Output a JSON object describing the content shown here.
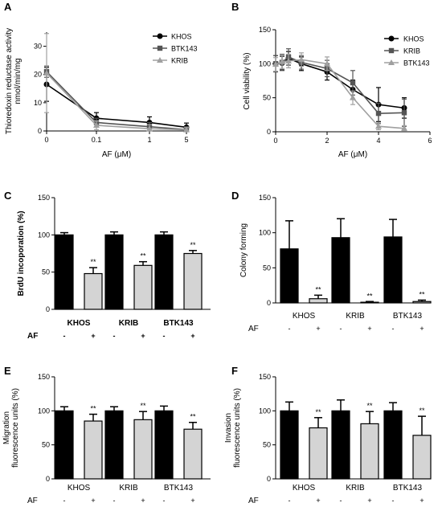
{
  "chart_data": [
    {
      "panel": "A",
      "type": "line",
      "ylabel_lines": [
        "Thioredoxin reductase activity",
        "nmol/min/mg"
      ],
      "xlabel": "AF (μM)",
      "x_tick_labels": [
        "0",
        "0.1",
        "1",
        "5"
      ],
      "ylim": [
        0,
        35
      ],
      "yticks": [
        0,
        10,
        20,
        30
      ],
      "series": [
        {
          "name": "KHOS",
          "color": "#000000",
          "marker": "circle",
          "values": [
            16.5,
            4.5,
            3.0,
            1.3
          ],
          "errors": [
            6.0,
            2.0,
            2.0,
            1.5
          ]
        },
        {
          "name": "BTK143",
          "color": "#555555",
          "marker": "square",
          "values": [
            21.0,
            3.0,
            1.5,
            0.5
          ],
          "errors": [
            2.0,
            1.5,
            1.5,
            1.0
          ]
        },
        {
          "name": "KRIB",
          "color": "#a0a0a0",
          "marker": "triangle",
          "values": [
            20.5,
            2.0,
            0.8,
            0.4
          ],
          "errors": [
            14.0,
            1.5,
            1.5,
            0.8
          ]
        }
      ]
    },
    {
      "panel": "B",
      "type": "line",
      "ylabel": "Cell viability (%)",
      "xlabel": "AF (μM)",
      "xlim": [
        0,
        6
      ],
      "xticks": [
        0,
        2,
        4,
        6
      ],
      "ylim": [
        0,
        150
      ],
      "yticks": [
        0,
        50,
        100,
        150
      ],
      "x": [
        0,
        0.25,
        0.5,
        1,
        2,
        3,
        4,
        5
      ],
      "series": [
        {
          "name": "KHOS",
          "color": "#000000",
          "marker": "circle",
          "values": [
            100,
            101,
            108,
            100,
            88,
            62,
            40,
            35
          ],
          "errors": [
            12,
            10,
            10,
            10,
            12,
            14,
            25,
            15
          ]
        },
        {
          "name": "KRIB",
          "color": "#555555",
          "marker": "square",
          "values": [
            100,
            102,
            110,
            102,
            93,
            72,
            27,
            28
          ],
          "errors": [
            12,
            12,
            12,
            10,
            12,
            18,
            15,
            20
          ]
        },
        {
          "name": "BTK143",
          "color": "#a0a0a0",
          "marker": "triangle",
          "values": [
            99,
            103,
            104,
            106,
            100,
            50,
            8,
            5
          ],
          "errors": [
            10,
            10,
            10,
            10,
            10,
            10,
            5,
            4
          ]
        }
      ]
    },
    {
      "panel": "C",
      "type": "bar",
      "ylabel": "BrdU incoporation (%)",
      "ylim": [
        0,
        150
      ],
      "yticks": [
        0,
        50,
        100,
        150
      ],
      "groups": [
        "KHOS",
        "KRIB",
        "BTK143"
      ],
      "af_label": "AF",
      "conditions": [
        "-",
        "+"
      ],
      "control": [
        100,
        100,
        100
      ],
      "control_err": [
        3,
        4,
        4
      ],
      "treated": [
        48,
        59,
        75
      ],
      "treated_err": [
        8,
        5,
        4
      ],
      "significance": "**"
    },
    {
      "panel": "D",
      "type": "bar",
      "ylabel": "Colony forming",
      "ylim": [
        0,
        150
      ],
      "yticks": [
        0,
        50,
        100,
        150
      ],
      "groups": [
        "KHOS",
        "KRIB",
        "BTK143"
      ],
      "af_label": "AF",
      "conditions": [
        "-",
        "+"
      ],
      "control": [
        77,
        93,
        94
      ],
      "control_err": [
        40,
        27,
        25
      ],
      "treated": [
        6,
        1,
        2
      ],
      "treated_err": [
        5,
        1,
        2
      ],
      "significance": "**"
    },
    {
      "panel": "E",
      "type": "bar",
      "ylabel_lines": [
        "Migration",
        "fluorescence units (%)"
      ],
      "ylim": [
        0,
        150
      ],
      "yticks": [
        0,
        50,
        100,
        150
      ],
      "groups": [
        "KHOS",
        "KRIB",
        "BTK143"
      ],
      "af_label": "AF",
      "conditions": [
        "-",
        "+"
      ],
      "control": [
        100,
        100,
        100
      ],
      "control_err": [
        6,
        6,
        7
      ],
      "treated": [
        85,
        87,
        73
      ],
      "treated_err": [
        10,
        12,
        10
      ],
      "significance": "**"
    },
    {
      "panel": "F",
      "type": "bar",
      "ylabel_lines": [
        "Invasion",
        "fluorescence units (%)"
      ],
      "ylim": [
        0,
        150
      ],
      "yticks": [
        0,
        50,
        100,
        150
      ],
      "groups": [
        "KHOS",
        "KRIB",
        "BTK143"
      ],
      "af_label": "AF",
      "conditions": [
        "-",
        "+"
      ],
      "control": [
        100,
        100,
        100
      ],
      "control_err": [
        13,
        16,
        12
      ],
      "treated": [
        75,
        81,
        64
      ],
      "treated_err": [
        15,
        18,
        28
      ],
      "significance": "**"
    }
  ],
  "colors": {
    "control_bar": "#000000",
    "treated_bar": "#d4d4d4"
  }
}
